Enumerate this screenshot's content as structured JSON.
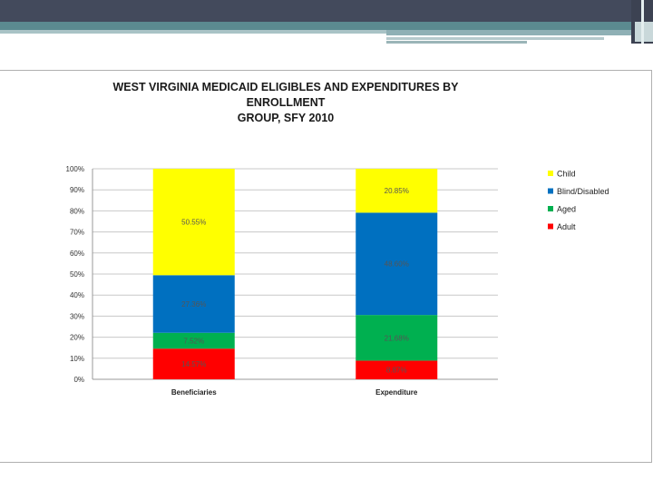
{
  "chart_data": {
    "type": "bar",
    "stacked": true,
    "title_line1": "WEST VIRGINIA MEDICAID ELIGIBLES AND EXPENDITURES BY ENROLLMENT",
    "title_line2": "GROUP, SFY 2010",
    "categories": [
      "Beneficiaries",
      "Expenditure"
    ],
    "ylim": [
      0,
      100
    ],
    "y_ticks": [
      "0%",
      "10%",
      "20%",
      "30%",
      "40%",
      "50%",
      "60%",
      "70%",
      "80%",
      "90%",
      "100%"
    ],
    "grid": true,
    "legend_position": "right",
    "series": [
      {
        "name": "Adult",
        "color": "#ff0000",
        "values": [
          14.57,
          8.87
        ],
        "labels": [
          "14.57%",
          "8.87%"
        ]
      },
      {
        "name": "Aged",
        "color": "#00b050",
        "values": [
          7.52,
          21.68
        ],
        "labels": [
          "7.52%",
          "21.68%"
        ]
      },
      {
        "name": "Blind/Disabled",
        "color": "#0070c0",
        "values": [
          27.36,
          48.6
        ],
        "labels": [
          "27.36%",
          "48.60%"
        ]
      },
      {
        "name": "Child",
        "color": "#ffff00",
        "values": [
          50.55,
          20.85
        ],
        "labels": [
          "50.55%",
          "20.85%"
        ]
      }
    ],
    "legend_order": [
      "Child",
      "Blind/Disabled",
      "Aged",
      "Adult"
    ]
  }
}
